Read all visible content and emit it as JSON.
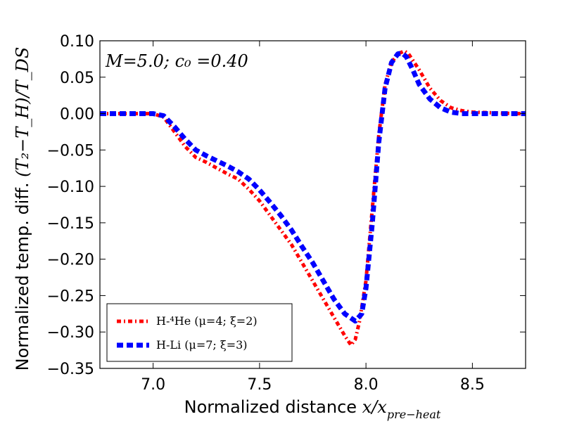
{
  "chart_data": {
    "type": "line",
    "title": "",
    "annotation": "M=5.0; c₀ =0.40",
    "xlabel": "Normalized distance x/x_{pre−heat}",
    "xlabel_text": "Normalized distance ",
    "xlabel_math": "x/x",
    "xlabel_sub": "pre−heat",
    "ylabel": "Normalized temp. diff. (T₂−T_H)/T_DS",
    "ylabel_text": "Normalized temp. diff. ",
    "ylabel_math": "(T₂−T_H)/T_DS",
    "xlim": [
      6.75,
      8.75
    ],
    "ylim": [
      -0.35,
      0.1
    ],
    "xticks": [
      7.0,
      7.5,
      8.0,
      8.5
    ],
    "xtick_labels": [
      "7.0",
      "7.5",
      "8.0",
      "8.5"
    ],
    "yticks": [
      0.1,
      0.05,
      0.0,
      -0.05,
      -0.1,
      -0.15,
      -0.2,
      -0.25,
      -0.3,
      -0.35
    ],
    "ytick_labels": [
      "0.10",
      "0.05",
      "0.00",
      "−0.05",
      "−0.10",
      "−0.15",
      "−0.20",
      "−0.25",
      "−0.30",
      "−0.35"
    ],
    "legend_position": "lower-left",
    "series": [
      {
        "name": "H-⁴He (μ=4; ξ=2)",
        "color": "#ff0000",
        "style": "dash-dot",
        "x": [
          6.75,
          6.9,
          7.0,
          7.05,
          7.1,
          7.15,
          7.2,
          7.25,
          7.3,
          7.35,
          7.4,
          7.45,
          7.5,
          7.55,
          7.6,
          7.65,
          7.7,
          7.75,
          7.8,
          7.85,
          7.9,
          7.93,
          7.95,
          7.97,
          8.0,
          8.03,
          8.06,
          8.09,
          8.12,
          8.15,
          8.18,
          8.2,
          8.25,
          8.3,
          8.35,
          8.4,
          8.45,
          8.5,
          8.6,
          8.7,
          8.75
        ],
        "y": [
          0.0,
          0.0,
          0.0,
          -0.005,
          -0.025,
          -0.045,
          -0.06,
          -0.067,
          -0.075,
          -0.083,
          -0.09,
          -0.104,
          -0.12,
          -0.14,
          -0.16,
          -0.18,
          -0.205,
          -0.23,
          -0.255,
          -0.28,
          -0.305,
          -0.318,
          -0.31,
          -0.285,
          -0.23,
          -0.13,
          -0.03,
          0.04,
          0.07,
          0.082,
          0.086,
          0.082,
          0.06,
          0.035,
          0.018,
          0.008,
          0.004,
          0.002,
          0.001,
          0.0,
          0.0
        ]
      },
      {
        "name": "H-Li (μ=7; ξ=3)",
        "color": "#0000ff",
        "style": "dashed",
        "x": [
          6.75,
          6.9,
          7.0,
          7.05,
          7.1,
          7.15,
          7.2,
          7.25,
          7.3,
          7.35,
          7.4,
          7.45,
          7.5,
          7.55,
          7.6,
          7.65,
          7.7,
          7.75,
          7.8,
          7.85,
          7.9,
          7.95,
          7.98,
          8.0,
          8.03,
          8.06,
          8.09,
          8.12,
          8.15,
          8.17,
          8.19,
          8.22,
          8.25,
          8.3,
          8.35,
          8.4,
          8.45,
          8.5,
          8.6,
          8.7,
          8.75
        ],
        "y": [
          0.0,
          0.0,
          0.0,
          -0.003,
          -0.018,
          -0.035,
          -0.05,
          -0.058,
          -0.065,
          -0.072,
          -0.08,
          -0.09,
          -0.105,
          -0.122,
          -0.14,
          -0.16,
          -0.183,
          -0.205,
          -0.23,
          -0.255,
          -0.275,
          -0.285,
          -0.275,
          -0.24,
          -0.15,
          -0.04,
          0.035,
          0.07,
          0.082,
          0.083,
          0.078,
          0.06,
          0.04,
          0.02,
          0.008,
          0.002,
          0.0,
          0.0,
          0.0,
          0.0,
          0.0
        ]
      }
    ]
  }
}
